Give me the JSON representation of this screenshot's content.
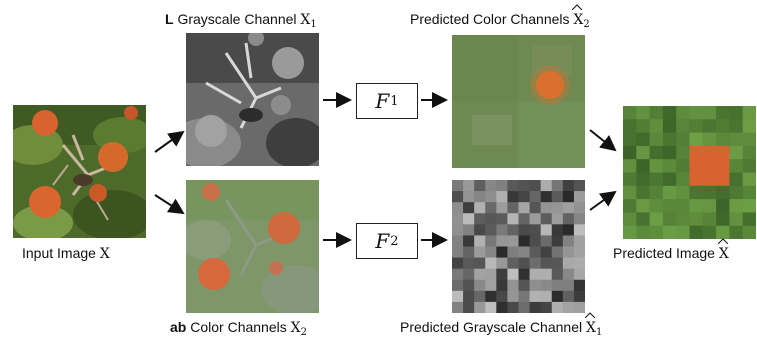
{
  "labels": {
    "l_channel_bold": "L",
    "l_channel_text": " Grayscale Channel ",
    "l_channel_var": "X",
    "l_channel_sub": "1",
    "pred_color_text": "Predicted Color Channels ",
    "pred_color_var": "X",
    "pred_color_sub": "2",
    "input_text": "Input Image ",
    "input_var": "X",
    "ab_bold": "ab",
    "ab_text": " Color Channels ",
    "ab_var": "X",
    "ab_sub": "2",
    "pred_gray_text": "Predicted Grayscale Channel ",
    "pred_gray_var": "X",
    "pred_gray_sub": "1",
    "pred_image_text": "Predicted Image ",
    "pred_image_var": "X"
  },
  "functions": {
    "f1_symbol": "F",
    "f1_sub": "1",
    "f2_symbol": "F",
    "f2_sub": "2"
  },
  "colors": {
    "arrow": "#111111",
    "ab_tint": "#7a9a6a",
    "pred_color_tint": "#6f8a55",
    "fruit": "#d9632e"
  }
}
